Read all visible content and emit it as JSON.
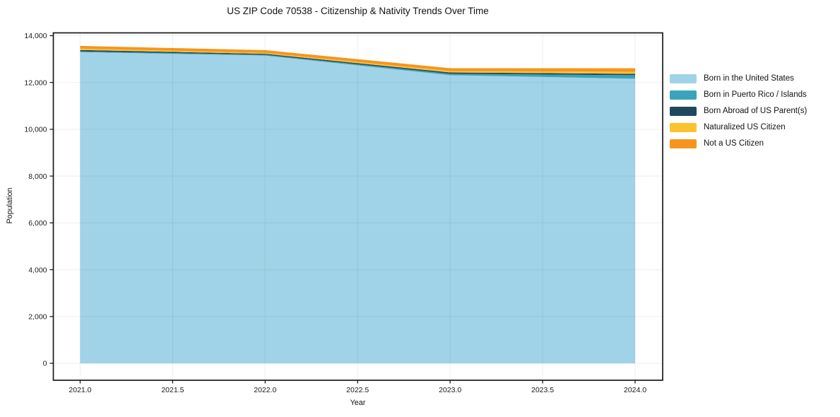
{
  "page": {
    "background": "#ffffff"
  },
  "chart_data": {
    "type": "area",
    "stacked": true,
    "title": "US ZIP Code 70538 - Citizenship & Nativity Trends Over Time",
    "xlabel": "Year",
    "ylabel": "Population",
    "x": [
      2021,
      2022,
      2023,
      2024
    ],
    "series": [
      {
        "name": "Born in the United States",
        "color": "#A0D3E8",
        "values": [
          13300,
          13150,
          12310,
          12160
        ]
      },
      {
        "name": "Born in Puerto Rico / Islands",
        "color": "#3BA3BB",
        "values": [
          30,
          35,
          60,
          150
        ]
      },
      {
        "name": "Born Abroad of US Parent(s)",
        "color": "#20485D",
        "values": [
          60,
          40,
          60,
          60
        ]
      },
      {
        "name": "Naturalized US Citizen",
        "color": "#FDC22F",
        "values": [
          55,
          40,
          60,
          90
        ]
      },
      {
        "name": "Not a US Citizen",
        "color": "#F7941E",
        "values": [
          120,
          115,
          120,
          150
        ]
      }
    ],
    "x_tick_labels": [
      "2021.0",
      "2021.5",
      "2022.0",
      "2022.5",
      "2023.0",
      "2023.5",
      "2024.0"
    ],
    "x_tick_values": [
      2021,
      2021.5,
      2022,
      2022.5,
      2023,
      2023.5,
      2024
    ],
    "y_tick_labels": [
      "0",
      "2,000",
      "4,000",
      "6,000",
      "8,000",
      "10,000",
      "12,000",
      "14,000"
    ],
    "y_tick_values": [
      0,
      2000,
      4000,
      6000,
      8000,
      10000,
      12000,
      14000
    ],
    "xlim": [
      2020.855,
      2024.149
    ],
    "ylim": [
      -724,
      14120
    ],
    "grid": true,
    "legend_position": "outside-right"
  },
  "colors": {
    "spine": "#1a1a1a",
    "tick": "#1a1a1a",
    "tick_label": "#1a1a1a",
    "grid": "rgba(0,0,0,0.055)",
    "background": "#ffffff"
  }
}
